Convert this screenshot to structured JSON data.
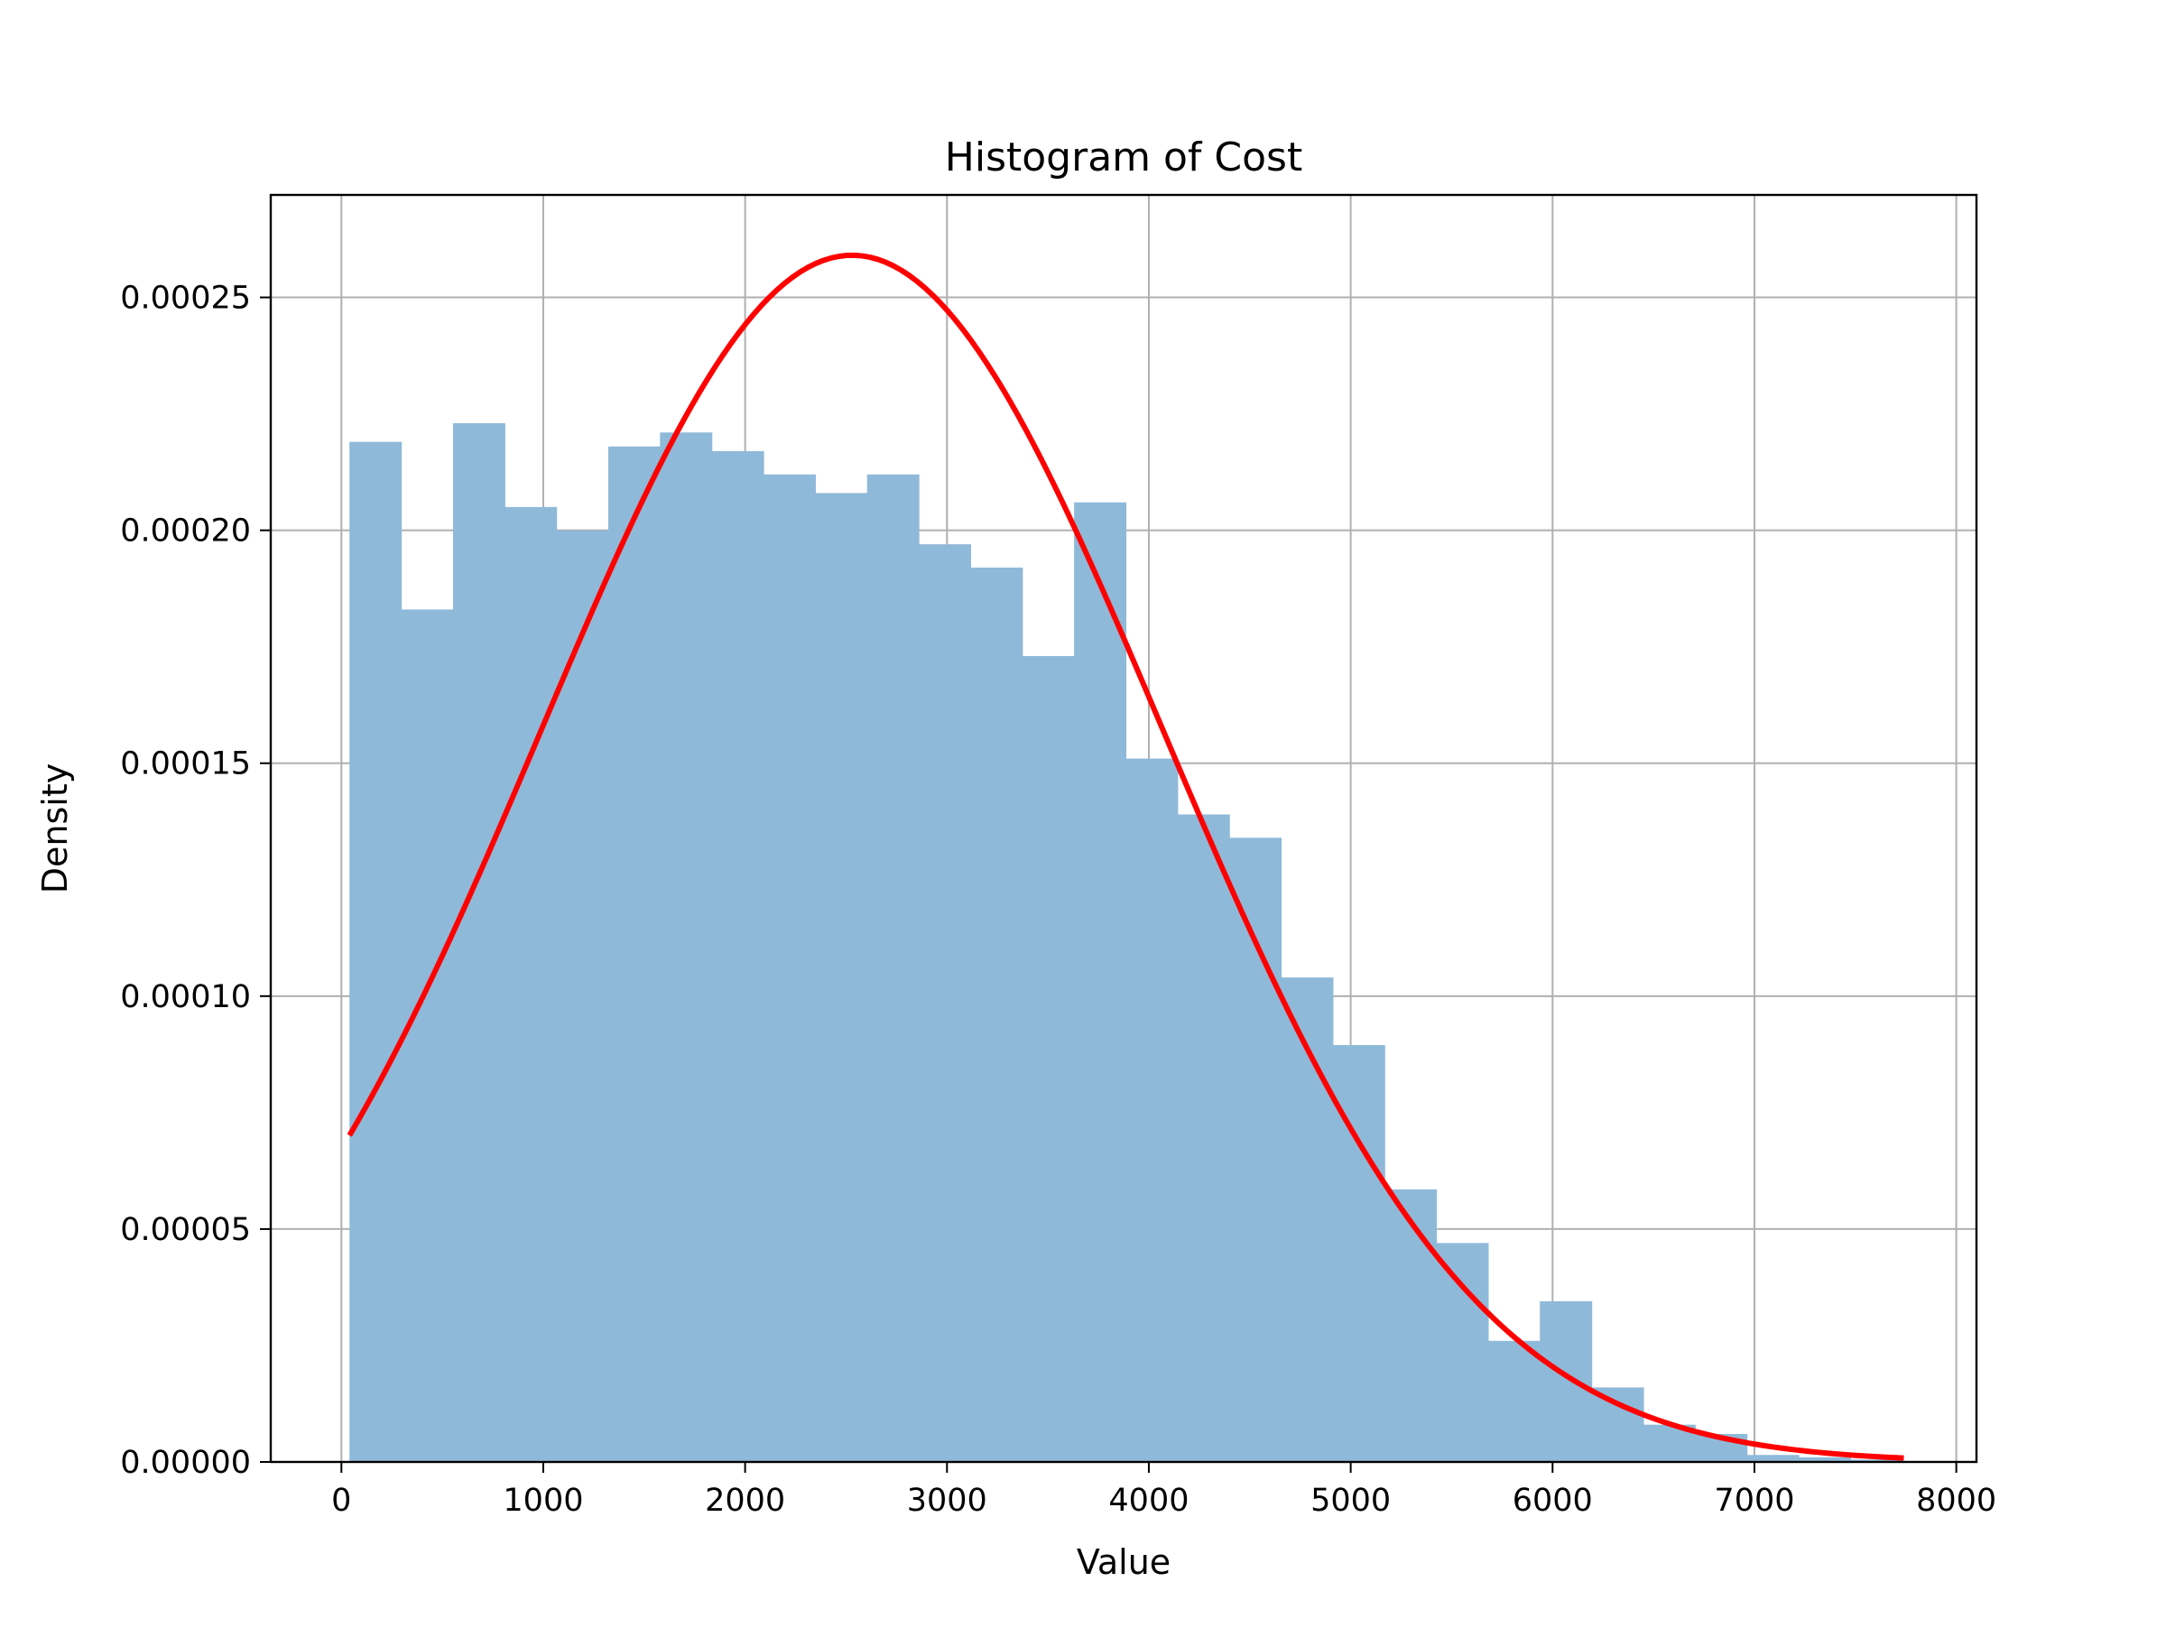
{
  "chart_data": {
    "type": "bar",
    "title": "Histogram of Cost",
    "xlabel": "Value",
    "ylabel": "Density",
    "xlim": [
      -350,
      8100
    ],
    "ylim": [
      0,
      0.000272
    ],
    "grid": true,
    "xticks": [
      0,
      1000,
      2000,
      3000,
      4000,
      5000,
      6000,
      7000,
      8000
    ],
    "xtick_labels": [
      "0",
      "1000",
      "2000",
      "3000",
      "4000",
      "5000",
      "6000",
      "7000",
      "8000"
    ],
    "yticks": [
      0,
      5e-05,
      0.0001,
      0.00015,
      0.0002,
      0.00025
    ],
    "ytick_labels": [
      "0.00000",
      "0.00005",
      "0.00010",
      "0.00015",
      "0.00020",
      "0.00025"
    ],
    "histogram": {
      "bin_start": 40,
      "bin_width": 256.4,
      "color": "#8fb9d9",
      "densities": [
        0.000219,
        0.000183,
        0.000223,
        0.000205,
        0.0002,
        0.000218,
        0.000221,
        0.000217,
        0.000212,
        0.000208,
        0.000212,
        0.000197,
        0.000192,
        0.000173,
        0.000206,
        0.000151,
        0.000139,
        0.000134,
        0.000104,
        8.95e-05,
        5.85e-05,
        4.7e-05,
        2.6e-05,
        3.45e-05,
        1.6e-05,
        8e-06,
        6e-06,
        1.5e-06,
        1e-06,
        5e-07
      ]
    },
    "fit_curve": {
      "type": "normal",
      "mean": 2530,
      "std": 1540,
      "x_range": [
        40,
        7740
      ],
      "color": "#ff0000"
    }
  }
}
